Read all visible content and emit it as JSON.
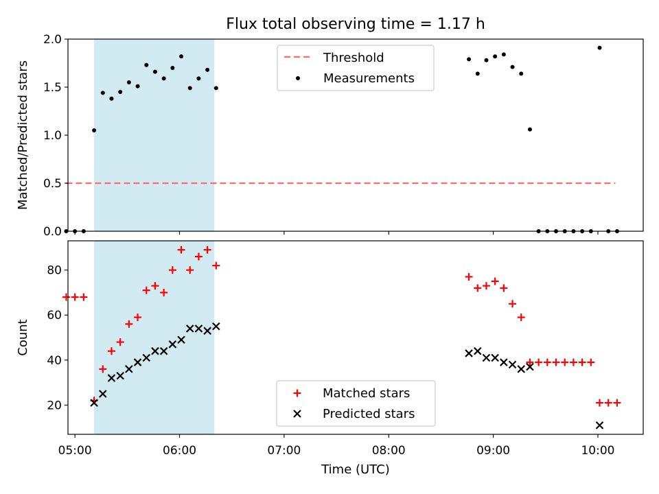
{
  "figure": {
    "title": "Flux total observing time = 1.17 h"
  },
  "chart_data": [
    {
      "type": "scatter",
      "ylabel": "Matched/Predicted stars",
      "xlim": [
        "04:56",
        "10:26"
      ],
      "ylim": [
        0,
        2.0
      ],
      "xticks": [
        "05:00",
        "06:00",
        "07:00",
        "08:00",
        "09:00",
        "10:00"
      ],
      "yticks": [
        "0.0",
        "0.5",
        "1.0",
        "1.5",
        "2.0"
      ],
      "shaded_span": [
        "05:11",
        "06:20"
      ],
      "colors": {
        "shade": "#add8e6",
        "threshold": "#ff6b6b",
        "measurements": "#000000"
      },
      "legend": {
        "placement": "top-center",
        "entries": [
          "Threshold",
          "Measurements"
        ]
      },
      "series": [
        {
          "name": "Threshold",
          "style": "dashed-line",
          "x": [
            "04:55",
            "10:10"
          ],
          "y": [
            0.5,
            0.5
          ]
        },
        {
          "name": "Measurements",
          "style": "dot",
          "x": [
            "04:55",
            "05:00",
            "05:05",
            "05:11",
            "05:16",
            "05:21",
            "05:26",
            "05:31",
            "05:36",
            "05:41",
            "05:46",
            "05:51",
            "05:56",
            "06:01",
            "06:06",
            "06:11",
            "06:16",
            "06:21",
            "08:46",
            "08:51",
            "08:56",
            "09:01",
            "09:06",
            "09:11",
            "09:16",
            "09:21",
            "09:26",
            "09:31",
            "09:36",
            "09:41",
            "09:46",
            "09:51",
            "09:56",
            "10:01",
            "10:06",
            "10:11"
          ],
          "y": [
            0,
            0,
            0,
            1.05,
            1.44,
            1.38,
            1.45,
            1.55,
            1.51,
            1.73,
            1.66,
            1.59,
            1.7,
            1.82,
            1.49,
            1.59,
            1.68,
            1.49,
            1.79,
            1.64,
            1.78,
            1.82,
            1.84,
            1.71,
            1.64,
            1.06,
            0,
            0,
            0,
            0,
            0,
            0,
            0,
            1.91,
            0,
            0
          ]
        }
      ]
    },
    {
      "type": "scatter",
      "ylabel": "Count",
      "xlabel": "Time (UTC)",
      "xlim": [
        "04:56",
        "10:26"
      ],
      "ylim": [
        7,
        93
      ],
      "xticks": [
        "05:00",
        "06:00",
        "07:00",
        "08:00",
        "09:00",
        "10:00"
      ],
      "yticks": [
        "20",
        "40",
        "60",
        "80"
      ],
      "shaded_span": [
        "05:11",
        "06:20"
      ],
      "colors": {
        "shade": "#add8e6",
        "matched": "#ff0000",
        "predicted": "#000000"
      },
      "legend": {
        "placement": "bottom-center",
        "entries": [
          "Matched stars",
          "Predicted stars"
        ]
      },
      "series": [
        {
          "name": "Matched stars",
          "marker": "plus",
          "x": [
            "04:55",
            "05:00",
            "05:05",
            "05:11",
            "05:16",
            "05:21",
            "05:26",
            "05:31",
            "05:36",
            "05:41",
            "05:46",
            "05:51",
            "05:56",
            "06:01",
            "06:06",
            "06:11",
            "06:16",
            "06:21",
            "08:46",
            "08:51",
            "08:56",
            "09:01",
            "09:06",
            "09:11",
            "09:16",
            "09:21",
            "09:26",
            "09:31",
            "09:36",
            "09:41",
            "09:46",
            "09:51",
            "09:56",
            "10:01",
            "10:06",
            "10:11"
          ],
          "y": [
            68,
            68,
            68,
            22,
            36,
            44,
            48,
            56,
            59,
            71,
            73,
            70,
            80,
            89,
            80,
            86,
            89,
            82,
            77,
            72,
            73,
            75,
            72,
            65,
            59,
            39,
            39,
            39,
            39,
            39,
            39,
            39,
            39,
            21,
            21,
            21
          ]
        },
        {
          "name": "Predicted stars",
          "marker": "x",
          "x": [
            "05:11",
            "05:16",
            "05:21",
            "05:26",
            "05:31",
            "05:36",
            "05:41",
            "05:46",
            "05:51",
            "05:56",
            "06:01",
            "06:06",
            "06:11",
            "06:16",
            "06:21",
            "08:46",
            "08:51",
            "08:56",
            "09:01",
            "09:06",
            "09:11",
            "09:16",
            "09:21",
            "10:01"
          ],
          "y": [
            21,
            25,
            32,
            33,
            36,
            39,
            41,
            44,
            44,
            47,
            49,
            54,
            54,
            53,
            55,
            43,
            44,
            41,
            41,
            39,
            38,
            36,
            37,
            11
          ]
        }
      ]
    }
  ]
}
